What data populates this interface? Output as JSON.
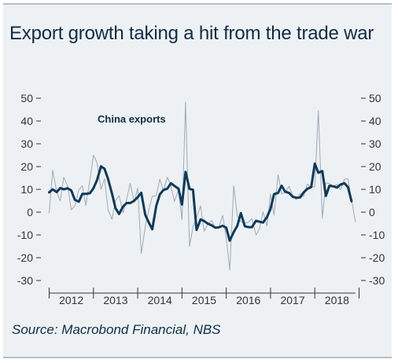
{
  "title": "Export growth taking a hit from the trade war",
  "source": "Source: Macrobond Financial, NBS",
  "chart_data": {
    "type": "line",
    "title": "Export growth taking a hit from the trade war",
    "xlabel": "",
    "ylabel": "",
    "ylim": [
      -30,
      50
    ],
    "y_ticks": [
      -30,
      -20,
      -10,
      0,
      10,
      20,
      30,
      40,
      50
    ],
    "y_tick_labels": [
      "-30",
      "-20",
      "-10",
      "0",
      "10",
      "20",
      "30",
      "40",
      "50"
    ],
    "x_tick_labels": [
      "2012",
      "2013",
      "2014",
      "2015",
      "2016",
      "2017",
      "2018"
    ],
    "xlim": [
      2011.92,
      2018.92
    ],
    "grid": false,
    "dual_axis_labels": true,
    "annotation": "China exports",
    "colors": {
      "monthly": "#9eaab5",
      "smoothed": "#0d3a5c",
      "frame": "#b8bec3",
      "text": "#0f2c48"
    },
    "series": [
      {
        "kind": "monthly",
        "x": [
          2012.0,
          2012.08,
          2012.17,
          2012.25,
          2012.33,
          2012.42,
          2012.5,
          2012.58,
          2012.67,
          2012.75,
          2012.83,
          2012.92,
          2013.0,
          2013.08,
          2013.17,
          2013.25,
          2013.33,
          2013.42,
          2013.5,
          2013.58,
          2013.67,
          2013.75,
          2013.83,
          2013.92,
          2014.0,
          2014.08,
          2014.17,
          2014.25,
          2014.33,
          2014.42,
          2014.5,
          2014.58,
          2014.67,
          2014.75,
          2014.83,
          2014.92,
          2015.0,
          2015.08,
          2015.17,
          2015.25,
          2015.33,
          2015.42,
          2015.5,
          2015.58,
          2015.67,
          2015.75,
          2015.83,
          2015.92,
          2016.0,
          2016.08,
          2016.17,
          2016.25,
          2016.33,
          2016.42,
          2016.5,
          2016.58,
          2016.67,
          2016.75,
          2016.83,
          2016.92,
          2017.0,
          2017.08,
          2017.17,
          2017.25,
          2017.33,
          2017.42,
          2017.5,
          2017.58,
          2017.67,
          2017.75,
          2017.83,
          2017.92,
          2018.0,
          2018.08,
          2018.17,
          2018.25,
          2018.33,
          2018.42,
          2018.5,
          2018.58,
          2018.67,
          2018.75,
          2018.83
        ],
        "values": [
          -0.5,
          18.4,
          8.9,
          4.9,
          15.3,
          11.3,
          1.0,
          2.7,
          9.9,
          11.6,
          2.9,
          14.1,
          25.0,
          21.8,
          10.0,
          14.7,
          1.0,
          -3.1,
          5.1,
          7.2,
          -0.3,
          5.6,
          12.7,
          4.3,
          10.6,
          -18.1,
          -6.6,
          0.9,
          7.0,
          7.2,
          14.5,
          9.4,
          15.3,
          11.6,
          4.7,
          9.7,
          -3.3,
          48.3,
          -15.0,
          -6.4,
          -2.5,
          2.8,
          -8.3,
          -5.5,
          -3.7,
          -6.9,
          -6.8,
          -1.4,
          -11.2,
          -25.4,
          11.5,
          -1.8,
          -4.1,
          -4.8,
          -4.4,
          -2.8,
          -10.0,
          -7.3,
          0.1,
          -6.1,
          7.9,
          -1.3,
          16.4,
          8.0,
          8.7,
          11.3,
          7.2,
          5.5,
          8.1,
          6.9,
          12.3,
          10.9,
          11.1,
          44.5,
          -2.7,
          12.9,
          12.6,
          11.3,
          12.2,
          9.8,
          14.5,
          14.6,
          5.4
        ],
        "end": {
          "x": 2018.92,
          "value": -4.4
        }
      },
      {
        "kind": "smoothed",
        "x": [
          2012.0,
          2012.08,
          2012.17,
          2012.25,
          2012.33,
          2012.42,
          2012.5,
          2012.58,
          2012.67,
          2012.75,
          2012.83,
          2012.92,
          2013.0,
          2013.08,
          2013.17,
          2013.25,
          2013.33,
          2013.42,
          2013.5,
          2013.58,
          2013.67,
          2013.75,
          2013.83,
          2013.92,
          2014.0,
          2014.08,
          2014.17,
          2014.25,
          2014.33,
          2014.42,
          2014.5,
          2014.58,
          2014.67,
          2014.75,
          2014.83,
          2014.92,
          2015.0,
          2015.08,
          2015.17,
          2015.25,
          2015.33,
          2015.42,
          2015.5,
          2015.58,
          2015.67,
          2015.75,
          2015.83,
          2015.92,
          2016.0,
          2016.08,
          2016.17,
          2016.25,
          2016.33,
          2016.42,
          2016.5,
          2016.58,
          2016.67,
          2016.75,
          2016.83,
          2016.92,
          2017.0,
          2017.08,
          2017.17,
          2017.25,
          2017.33,
          2017.42,
          2017.5,
          2017.58,
          2017.67,
          2017.75,
          2017.83,
          2017.92,
          2018.0,
          2018.08,
          2018.17,
          2018.25,
          2018.33,
          2018.42,
          2018.5,
          2018.58,
          2018.67,
          2018.75,
          2018.83
        ],
        "values": [
          8.7,
          10.0,
          8.8,
          10.6,
          10.0,
          10.5,
          9.5,
          5.4,
          4.6,
          8.0,
          8.0,
          8.3,
          10.5,
          14.0,
          20.1,
          19.0,
          14.5,
          8.1,
          1.7,
          -0.8,
          2.5,
          4.0,
          4.0,
          5.0,
          6.6,
          8.5,
          -1.1,
          -4.5,
          -7.5,
          2.8,
          7.8,
          9.7,
          10.3,
          12.7,
          11.5,
          10.3,
          3.3,
          17.7,
          10.2,
          9.8,
          -7.8,
          -3.2,
          -3.9,
          -5.0,
          -5.8,
          -6.8,
          -6.7,
          -6.0,
          -6.8,
          -12.5,
          -8.7,
          -6.0,
          -0.4,
          -6.2,
          -6.6,
          -6.6,
          -3.8,
          -4.2,
          -4.6,
          -2.2,
          1.4,
          7.9,
          8.4,
          11.6,
          9.0,
          8.4,
          6.8,
          6.3,
          6.5,
          8.7,
          10.2,
          11.0,
          21.3,
          17.3,
          18.0,
          7.1,
          11.6,
          11.3,
          10.8,
          12.1,
          12.7,
          11.0,
          4.8
        ]
      }
    ]
  }
}
